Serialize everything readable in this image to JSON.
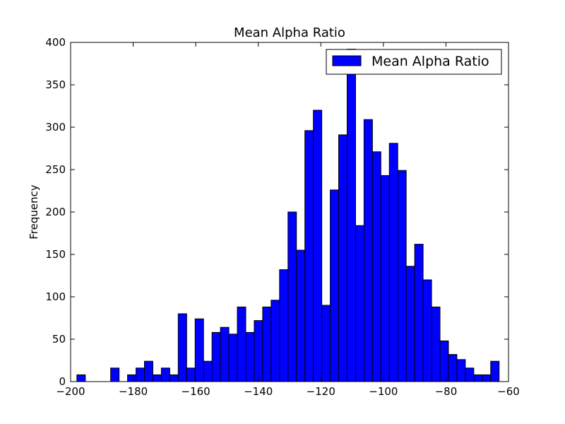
{
  "chart_data": {
    "type": "bar",
    "title": "Mean Alpha Ratio",
    "xlabel": "",
    "ylabel": "Frequency",
    "xlim": [
      -200,
      -60
    ],
    "ylim": [
      0,
      400
    ],
    "xticks": [
      -200,
      -180,
      -160,
      -140,
      -120,
      -100,
      -80,
      -60
    ],
    "yticks": [
      0,
      50,
      100,
      150,
      200,
      250,
      300,
      350,
      400
    ],
    "bin_edges": [
      -198,
      -195.3,
      -192.6,
      -189.9,
      -187.2,
      -184.5,
      -181.8,
      -179.1,
      -176.4,
      -173.7,
      -171.0,
      -168.3,
      -165.6,
      -162.9,
      -160.2,
      -157.5,
      -154.8,
      -152.1,
      -149.4,
      -146.7,
      -144.0,
      -141.3,
      -138.6,
      -135.9,
      -133.2,
      -130.5,
      -127.8,
      -125.1,
      -122.4,
      -119.7,
      -117.0,
      -114.3,
      -111.6,
      -108.9,
      -106.2,
      -103.5,
      -100.8,
      -98.1,
      -95.4,
      -92.7,
      -90.0,
      -87.3,
      -84.6,
      -81.9,
      -79.2,
      -76.5,
      -73.8,
      -71.1,
      -68.4,
      -65.7,
      -63.0
    ],
    "counts": [
      8,
      0,
      0,
      0,
      16,
      0,
      8,
      16,
      24,
      8,
      16,
      8,
      80,
      16,
      74,
      24,
      58,
      64,
      56,
      88,
      58,
      72,
      88,
      96,
      132,
      200,
      155,
      296,
      320,
      90,
      226,
      291,
      392,
      184,
      309,
      271,
      243,
      281,
      249,
      136,
      162,
      120,
      88,
      48,
      32,
      26,
      16,
      8,
      8,
      24
    ],
    "series": [
      {
        "name": "Mean Alpha Ratio",
        "color": "#0000ff"
      }
    ],
    "legend_position": "upper right",
    "bar_color": "#0000ff",
    "edge_color": "#000000"
  }
}
